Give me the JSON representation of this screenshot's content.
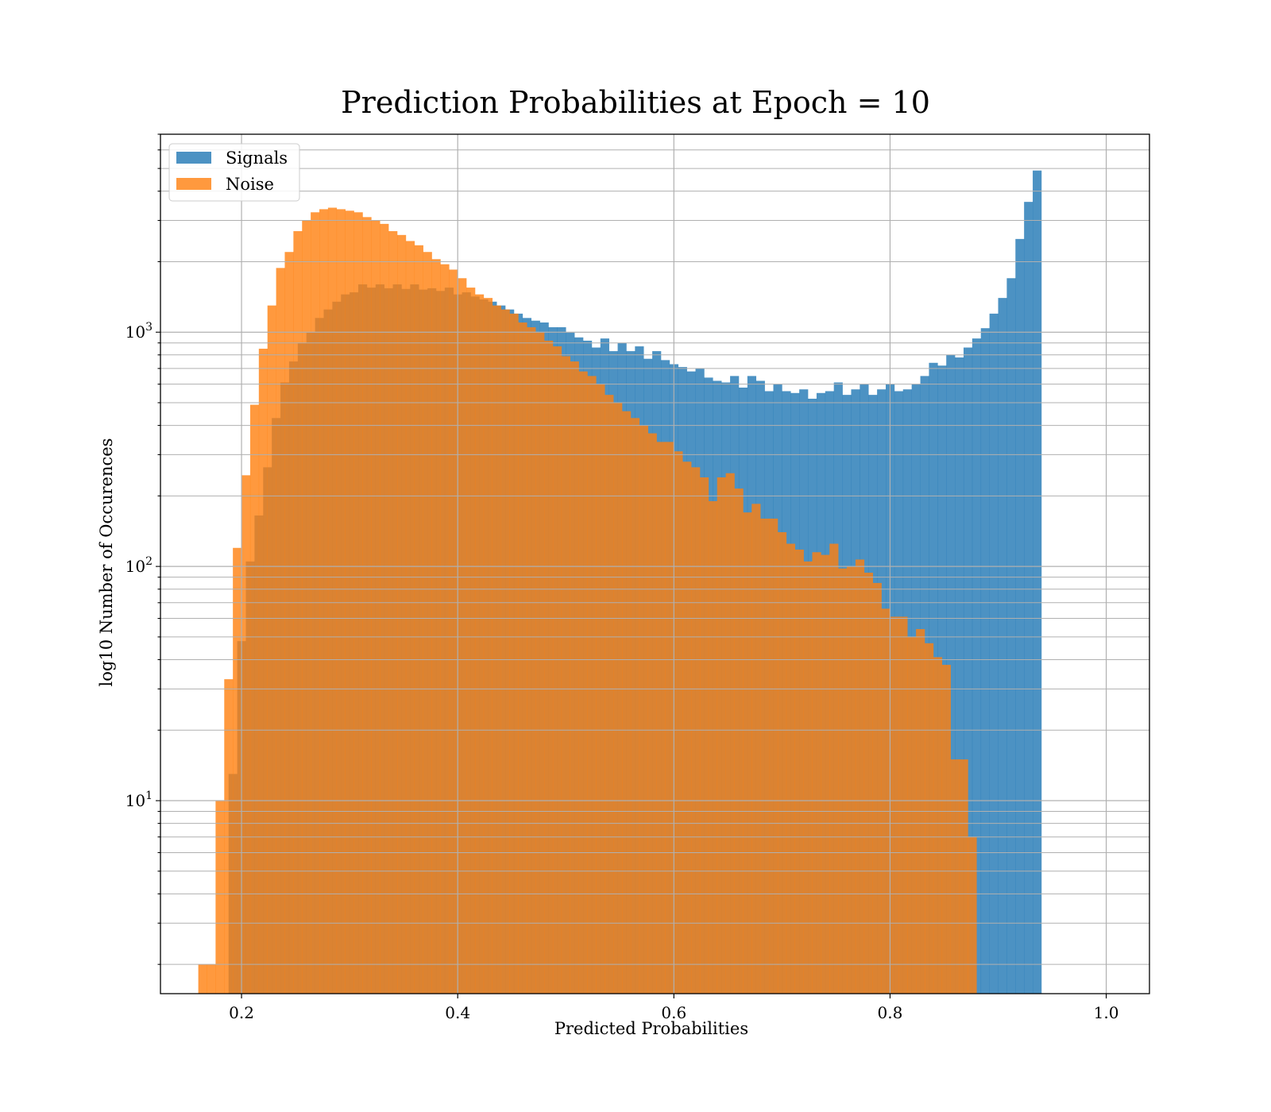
{
  "chart_data": {
    "type": "bar",
    "title": "Prediction Probabilities at Epoch = 10",
    "xlabel": "Predicted Probabilities",
    "ylabel": "log10 Number of Occurences",
    "xlim": [
      0.125,
      1.04
    ],
    "ylim": [
      1.5,
      7000
    ],
    "yscale": "log",
    "grid": true,
    "legend_position": "top-left",
    "x_ticks": [
      "0.2",
      "0.4",
      "0.6",
      "0.8",
      "1.0"
    ],
    "y_ticks": [
      {
        "base": "10",
        "exp": "1"
      },
      {
        "base": "10",
        "exp": "2"
      },
      {
        "base": "10",
        "exp": "3"
      }
    ],
    "colors": {
      "signals": "#1f77b4",
      "noise": "#ff7f0e",
      "grid": "#b0b0b0"
    },
    "series": [
      {
        "name": "Signals",
        "bin_start": 0.18,
        "bin_width": 0.008,
        "values": [
          0,
          13,
          48,
          105,
          165,
          265,
          430,
          610,
          750,
          900,
          1000,
          1150,
          1250,
          1350,
          1450,
          1480,
          1600,
          1550,
          1600,
          1540,
          1600,
          1530,
          1600,
          1520,
          1540,
          1500,
          1550,
          1450,
          1480,
          1420,
          1380,
          1350,
          1300,
          1250,
          1200,
          1150,
          1120,
          1100,
          1050,
          1050,
          1000,
          950,
          920,
          860,
          940,
          830,
          900,
          830,
          870,
          770,
          830,
          760,
          730,
          710,
          680,
          700,
          640,
          620,
          610,
          650,
          580,
          650,
          620,
          560,
          600,
          560,
          550,
          570,
          520,
          550,
          560,
          610,
          540,
          570,
          600,
          540,
          570,
          600,
          560,
          570,
          600,
          650,
          740,
          720,
          800,
          780,
          860,
          940,
          1040,
          1200,
          1400,
          1700,
          2500,
          3600,
          4900
        ]
      },
      {
        "name": "Noise",
        "bin_start": 0.16,
        "bin_width": 0.008,
        "values": [
          2,
          2,
          10,
          33,
          120,
          245,
          490,
          850,
          1300,
          1880,
          2200,
          2700,
          3000,
          3250,
          3350,
          3400,
          3350,
          3300,
          3250,
          3100,
          3000,
          2900,
          2700,
          2600,
          2450,
          2350,
          2200,
          2050,
          1950,
          1850,
          1700,
          1550,
          1450,
          1400,
          1300,
          1250,
          1200,
          1100,
          1050,
          1000,
          920,
          870,
          790,
          750,
          680,
          650,
          600,
          540,
          500,
          460,
          430,
          400,
          370,
          340,
          340,
          310,
          280,
          265,
          240,
          190,
          240,
          250,
          215,
          170,
          185,
          160,
          160,
          140,
          125,
          118,
          105,
          115,
          112,
          125,
          98,
          100,
          107,
          94,
          85,
          66,
          61,
          61,
          50,
          54,
          47,
          41,
          38,
          15,
          15,
          7
        ]
      }
    ]
  }
}
